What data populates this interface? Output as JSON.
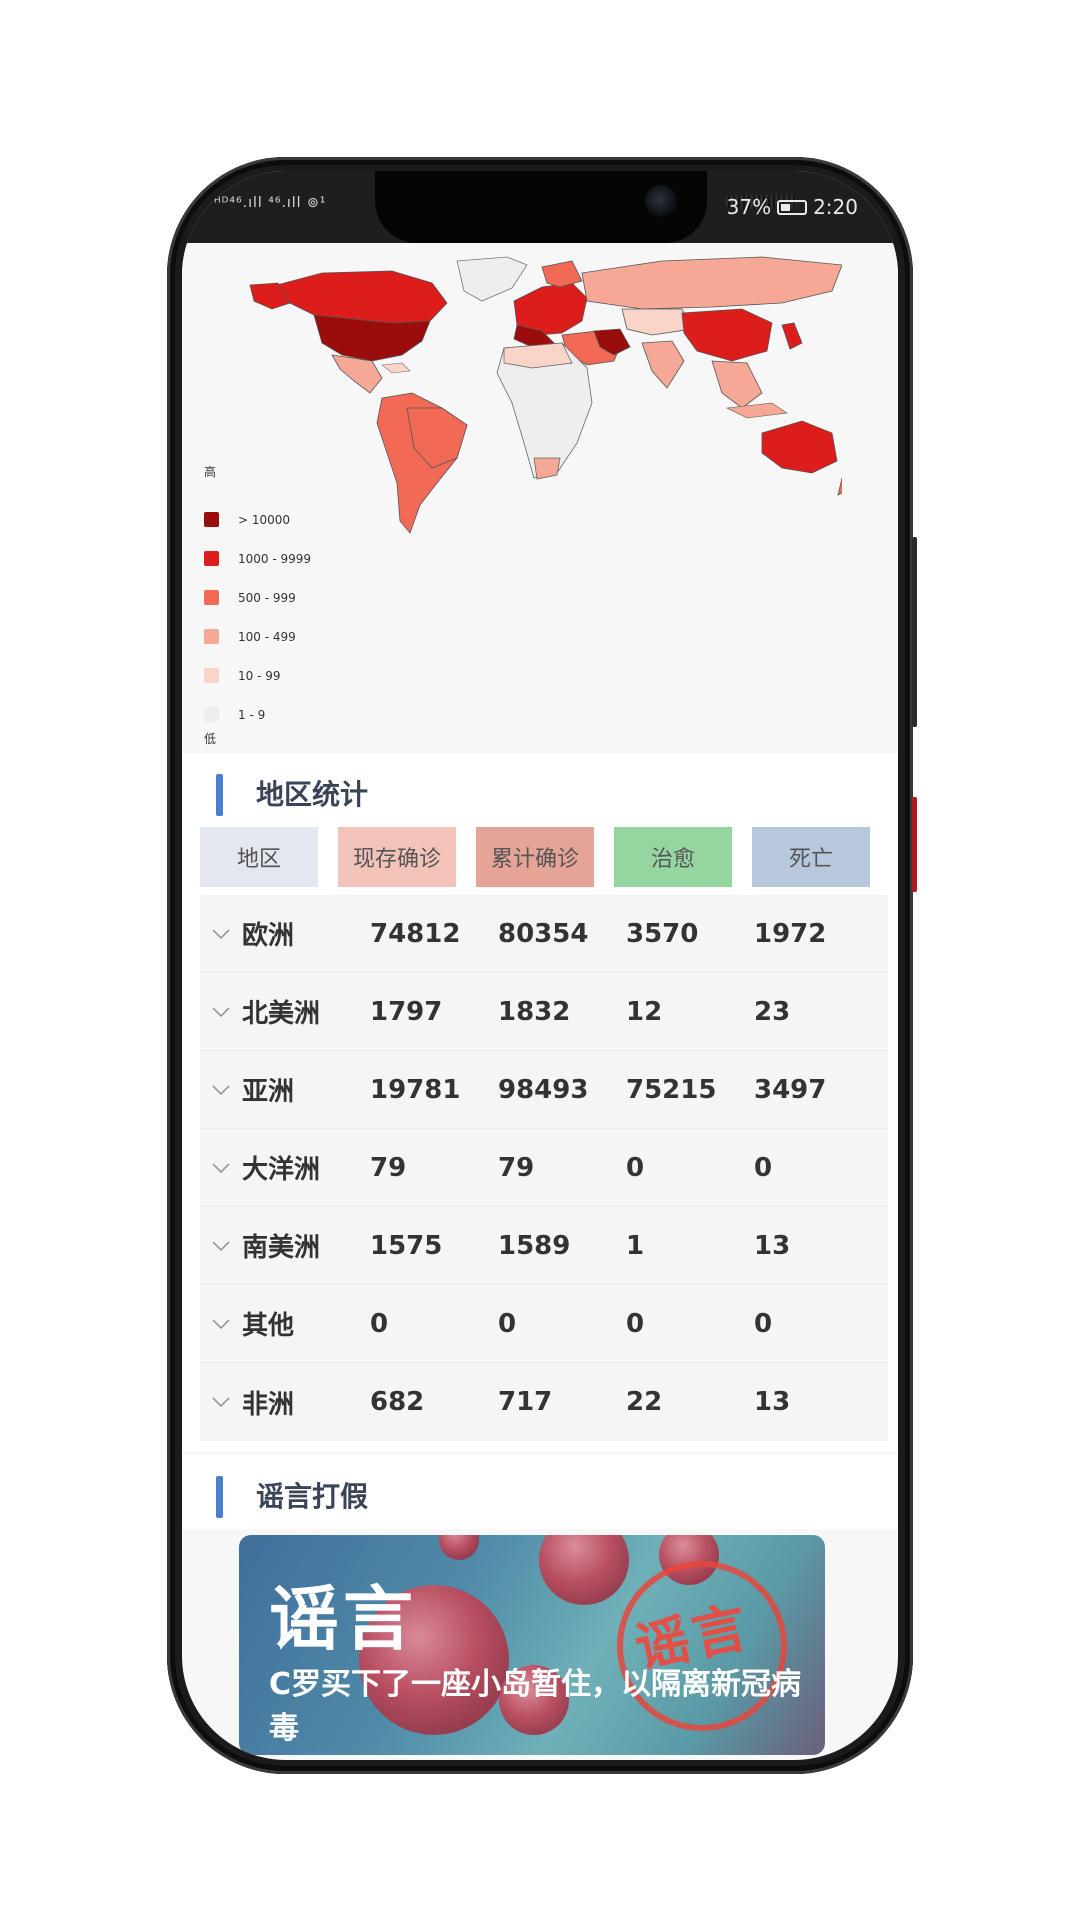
{
  "status_bar": {
    "left": "ᴴᴰ⁴⁶.ıll ⁴⁶.ıll ⊚¹",
    "battery": "37%",
    "time": "2:20"
  },
  "map": {
    "legend_high": "高",
    "legend_low": "低",
    "legend": [
      {
        "label": "> 10000",
        "color": "#9b0d0d"
      },
      {
        "label": "1000 - 9999",
        "color": "#dd1c1c"
      },
      {
        "label": "500 - 999",
        "color": "#f26a55"
      },
      {
        "label": "100 - 499",
        "color": "#f6a896"
      },
      {
        "label": "10 - 99",
        "color": "#f9d4c9"
      },
      {
        "label": "1 - 9",
        "color": "#eeeeee"
      }
    ]
  },
  "region_section": {
    "title": "地区统计",
    "headers": [
      {
        "label": "地区",
        "color": "#e3e7f0"
      },
      {
        "label": "现存确诊",
        "color": "#f3c3b9"
      },
      {
        "label": "累计确诊",
        "color": "#e6a397"
      },
      {
        "label": "治愈",
        "color": "#95d6a0"
      },
      {
        "label": "死亡",
        "color": "#b8c8dc"
      }
    ],
    "rows": [
      {
        "region": "欧洲",
        "current": "74812",
        "total": "80354",
        "cured": "3570",
        "dead": "1972"
      },
      {
        "region": "北美洲",
        "current": "1797",
        "total": "1832",
        "cured": "12",
        "dead": "23"
      },
      {
        "region": "亚洲",
        "current": "19781",
        "total": "98493",
        "cured": "75215",
        "dead": "3497"
      },
      {
        "region": "大洋洲",
        "current": "79",
        "total": "79",
        "cured": "0",
        "dead": "0"
      },
      {
        "region": "南美洲",
        "current": "1575",
        "total": "1589",
        "cured": "1",
        "dead": "13"
      },
      {
        "region": "其他",
        "current": "0",
        "total": "0",
        "cured": "0",
        "dead": "0"
      },
      {
        "region": "非洲",
        "current": "682",
        "total": "717",
        "cured": "22",
        "dead": "13"
      }
    ]
  },
  "rumor_section": {
    "title": "谣言打假",
    "card_tag": "谣言",
    "stamp": "谣言",
    "headline": "C罗买下了一座小岛暂住，以隔离新冠病毒"
  }
}
